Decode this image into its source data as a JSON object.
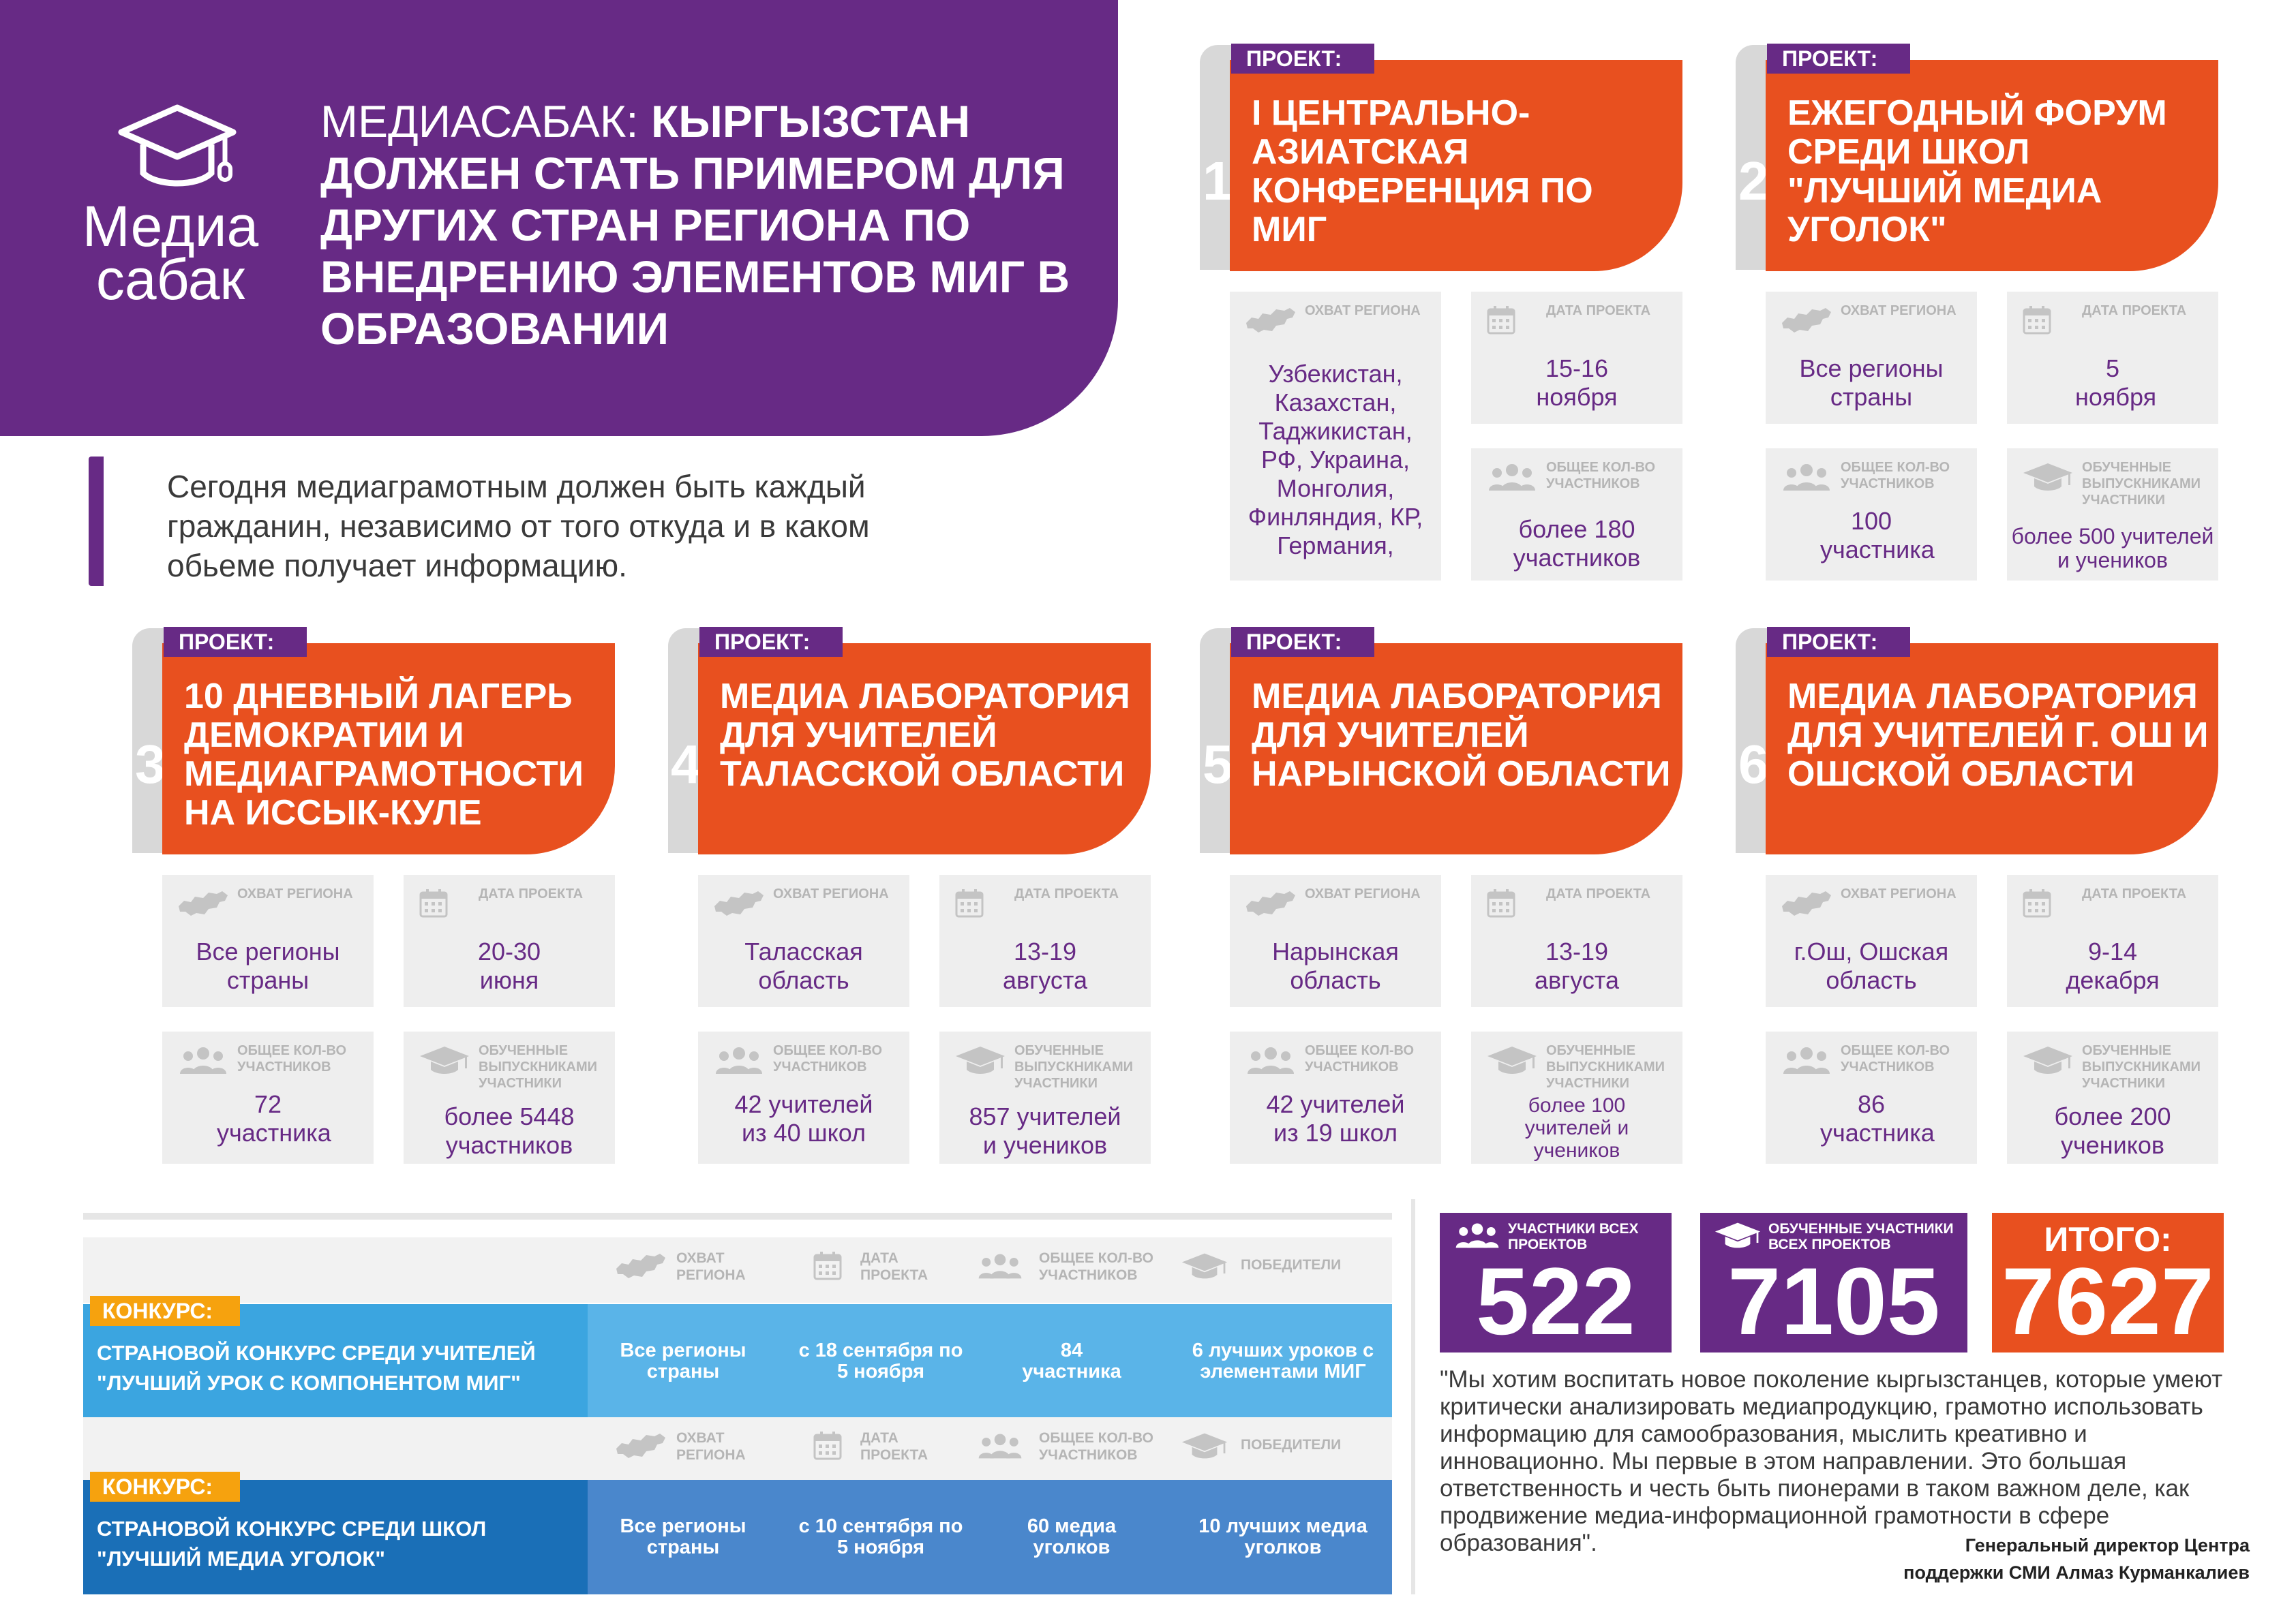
{
  "header": {
    "logo": {
      "line1": "Медиа",
      "line2": "сабак"
    },
    "title_light": "МЕДИАСАБАК: ",
    "title_bold": "КЫРГЫЗСТАН ДОЛЖЕН СТАТЬ ПРИМЕРОМ ДЛЯ ДРУГИХ СТРАН РЕГИОНА ПО ВНЕДРЕНИЮ ЭЛЕМЕНТОВ МИГ В ОБРАЗОВАНИИ"
  },
  "intro": "Сегодня медиаграмотным должен быть каждый гражданин, независимо от того откуда и в каком обьеме получает информацию.",
  "labels": {
    "project_tag": "ПРОЕКТ:",
    "region": "ОХВАТ РЕГИОНА",
    "date": "ДАТА ПРОЕКТА",
    "participants": "ОБЩЕЕ КОЛ-ВО УЧАСТНИКОВ",
    "trained": "ОБУЧЕННЫЕ ВЫПУСКНИКАМИ УЧАСТНИКИ",
    "winners": "ПОБЕДИТЕЛИ",
    "contest_tag": "КОНКУРС:"
  },
  "projects": [
    {
      "num": "1",
      "title": "I ЦЕНТРАЛЬНО-АЗИАТСКАЯ КОНФЕРЕНЦИЯ ПО МИГ",
      "region": "Узбекистан, Казахстан, Таджикистан, РФ, Украина, Монголия, Финляндия, КР, Германия,",
      "date": "15-16 ноября",
      "participants": "более 180 участников"
    },
    {
      "num": "2",
      "title": "ЕЖЕГОДНЫЙ ФОРУМ СРЕДИ ШКОЛ \"ЛУЧШИЙ МЕДИА УГОЛОК\"",
      "region": "Все регионы страны",
      "date": "5 ноября",
      "participants": "100 участника",
      "trained": "более 500 учителей и учеников"
    },
    {
      "num": "3",
      "title": "10 ДНЕВНЫЙ ЛАГЕРЬ ДЕМОКРАТИИ И МЕДИАГРАМОТНОСТИ НА ИССЫК-КУЛЕ",
      "region": "Все регионы страны",
      "date": "20-30 июня",
      "participants": "72 участника",
      "trained": "более 5448 участников"
    },
    {
      "num": "4",
      "title": "МЕДИА ЛАБОРАТОРИЯ ДЛЯ УЧИТЕЛЕЙ ТАЛАССКОЙ ОБЛАСТИ",
      "region": "Таласская область",
      "date": "13-19 августа",
      "participants": "42 учителей из 40 школ",
      "trained": "857 учителей и учеников"
    },
    {
      "num": "5",
      "title": "МЕДИА ЛАБОРАТОРИЯ ДЛЯ УЧИТЕЛЕЙ НАРЫНСКОЙ ОБЛАСТИ",
      "region": "Нарынская область",
      "date": "13-19 августа",
      "participants": "42 учителей из 19 школ",
      "trained": "более 100 учителей и учеников"
    },
    {
      "num": "6",
      "title": "МЕДИА ЛАБОРАТОРИЯ ДЛЯ УЧИТЕЛЕЙ Г. ОШ И ОШСКОЙ ОБЛАСТИ",
      "region": "г.Ош, Ошская область",
      "date": "9-14 декабря",
      "participants": "86 участника",
      "trained": "более 200 учеников"
    }
  ],
  "contests": [
    {
      "name": "СТРАНОВОЙ КОНКУРС СРЕДИ УЧИТЕЛЕЙ \"ЛУЧШИЙ УРОК С КОМПОНЕНТОМ МИГ\"",
      "region": "Все регионы страны",
      "date": "с 18 сентября по 5 ноября",
      "participants": "84 участника",
      "winners": "6 лучших уроков с элементами МИГ"
    },
    {
      "name": "СТРАНОВОЙ КОНКУРС СРЕДИ ШКОЛ \"ЛУЧШИЙ МЕДИА УГОЛОК\"",
      "region": "Все регионы страны",
      "date": "с 10 сентября по 5 ноября",
      "participants": "60 медиа уголков",
      "winners": "10 лучших медиа уголков"
    }
  ],
  "totals": {
    "participants_label": "УЧАСТНИКИ ВСЕХ ПРОЕКТОВ",
    "participants_value": "522",
    "trained_label": "ОБУЧЕННЫЕ УЧАСТНИКИ ВСЕХ ПРОЕКТОВ",
    "trained_value": "7105",
    "total_label": "ИТОГО:",
    "total_value": "7627"
  },
  "quote": "\"Мы хотим воспитать новое поколение кыргызстанцев, которые умеют критически анализировать медиапродукцию, грамотно использовать информацию для самообразования, мыслить креативно и инновационно. Мы первые в этом направлении. Это большая ответственность и честь быть пионерами в таком важном деле, как продвижение медиа-информационной грамотности в сфере образования\".",
  "author": {
    "line1": "Генеральный директор Центра",
    "line2": "поддержки СМИ Алмаз Курманкалиев"
  },
  "colors": {
    "purple": "#672a85",
    "orange": "#e8501f",
    "gray_box": "#eeeeee",
    "contest_tag": "#f6a20e",
    "blue_light": "#3ba5e0",
    "blue_dark": "#1a6fb7"
  },
  "icons": {
    "region": "kyrgyzstan-map-icon",
    "date": "calendar-icon",
    "participants": "people-icon",
    "trained": "graduation-cap-icon",
    "winners": "graduation-cap-icon"
  }
}
